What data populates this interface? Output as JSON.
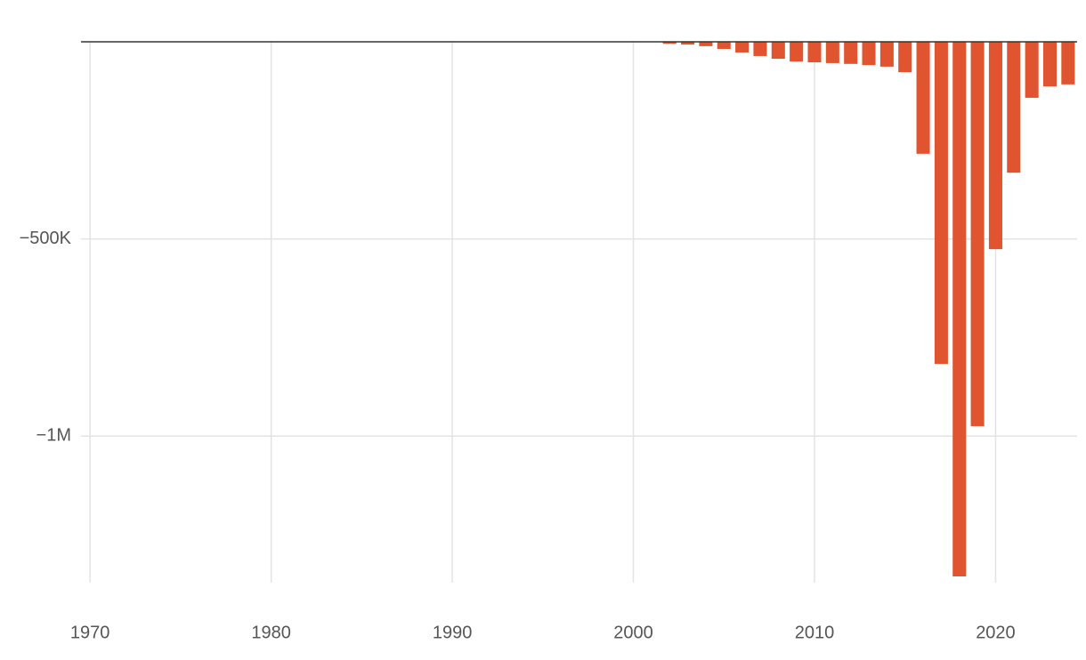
{
  "chart_data": {
    "type": "bar",
    "color": "#e05530",
    "x": [
      2002,
      2003,
      2004,
      2005,
      2006,
      2007,
      2008,
      2009,
      2010,
      2011,
      2012,
      2013,
      2014,
      2015,
      2016,
      2017,
      2018,
      2019,
      2020,
      2021,
      2022,
      2023,
      2024
    ],
    "values": [
      -5000,
      -7000,
      -11000,
      -18000,
      -27000,
      -36000,
      -43000,
      -50000,
      -52000,
      -54000,
      -56000,
      -59000,
      -63000,
      -77000,
      -284000,
      -817000,
      -1356000,
      -975000,
      -526000,
      -332000,
      -142000,
      -113000,
      -108000
    ],
    "xlim": [
      1969.5,
      2024.5
    ],
    "xticks": [
      1970,
      1980,
      1990,
      2000,
      2010,
      2020
    ],
    "ylim": [
      -1356000,
      0
    ],
    "yticks": [
      {
        "value": -1000000,
        "label": "−1M"
      },
      {
        "value": -500000,
        "label": "−500K"
      }
    ],
    "grid": true
  }
}
